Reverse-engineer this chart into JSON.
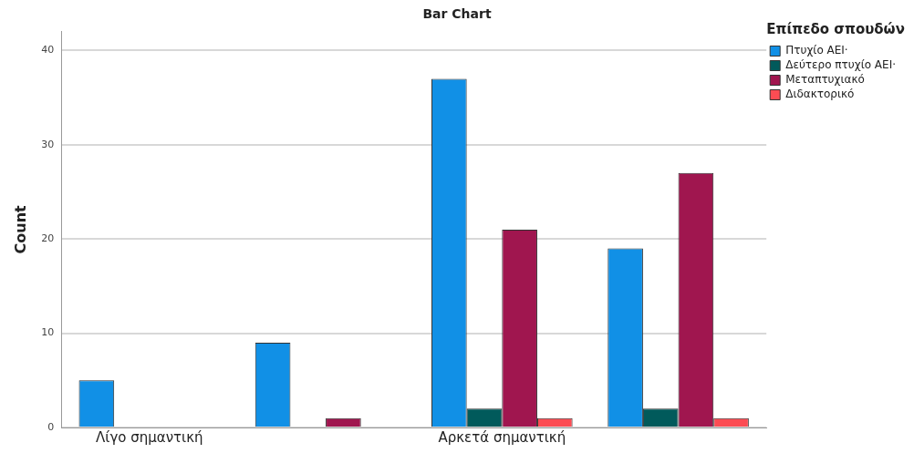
{
  "chart_data": {
    "type": "bar",
    "title": "Bar Chart",
    "ylabel": "Count",
    "legend_title": "Επίπεδο σπουδών",
    "categories": [
      "Λίγο σημαντική",
      null,
      "Αρκετά σημαντική",
      null
    ],
    "series": [
      {
        "name": "Πτυχίο ΑΕΙ·",
        "color": "#1190e6",
        "values": [
          5,
          9,
          37,
          19
        ]
      },
      {
        "name": "Δεύτερο πτυχίο ΑΕΙ·",
        "color": "#015a5b",
        "values": [
          null,
          null,
          2,
          2
        ]
      },
      {
        "name": "Μεταπτυχιακό",
        "color": "#a0164f",
        "values": [
          null,
          1,
          21,
          27
        ]
      },
      {
        "name": "Διδακτορικό",
        "color": "#fc4c53",
        "values": [
          null,
          null,
          1,
          1
        ]
      }
    ],
    "ylim": [
      0,
      42
    ],
    "yticks": [
      0,
      10,
      20,
      30,
      40
    ],
    "grid": "y",
    "legend": "top right"
  }
}
